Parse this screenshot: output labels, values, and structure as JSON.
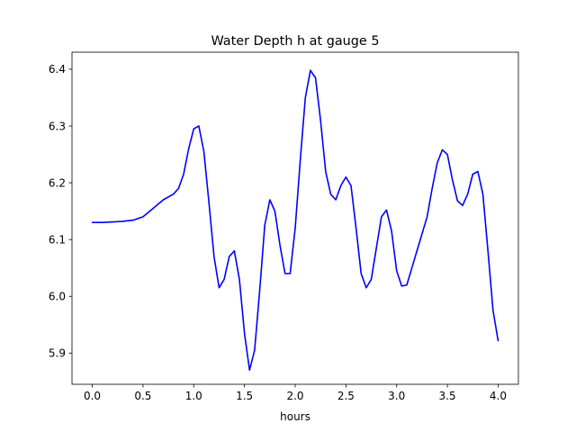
{
  "chart_data": {
    "type": "line",
    "title": "Water Depth h at gauge 5",
    "xlabel": "hours",
    "ylabel": "",
    "xlim": [
      -0.2,
      4.2
    ],
    "ylim": [
      5.845,
      6.43
    ],
    "xticks": [
      0.0,
      0.5,
      1.0,
      1.5,
      2.0,
      2.5,
      3.0,
      3.5,
      4.0
    ],
    "xtick_labels": [
      "0.0",
      "0.5",
      "1.0",
      "1.5",
      "2.0",
      "2.5",
      "3.0",
      "3.5",
      "4.0"
    ],
    "yticks": [
      5.9,
      6.0,
      6.1,
      6.2,
      6.3,
      6.4
    ],
    "ytick_labels": [
      "5.9",
      "6.0",
      "6.1",
      "6.2",
      "6.3",
      "6.4"
    ],
    "grid": false,
    "series": [
      {
        "color": "#0000ff",
        "x": [
          0.0,
          0.1,
          0.2,
          0.3,
          0.4,
          0.5,
          0.6,
          0.7,
          0.8,
          0.85,
          0.9,
          0.95,
          1.0,
          1.05,
          1.1,
          1.15,
          1.2,
          1.25,
          1.3,
          1.35,
          1.4,
          1.45,
          1.5,
          1.55,
          1.6,
          1.65,
          1.7,
          1.75,
          1.8,
          1.85,
          1.9,
          1.95,
          2.0,
          2.05,
          2.1,
          2.15,
          2.2,
          2.25,
          2.3,
          2.35,
          2.4,
          2.45,
          2.5,
          2.55,
          2.6,
          2.65,
          2.7,
          2.75,
          2.8,
          2.85,
          2.9,
          2.95,
          3.0,
          3.05,
          3.1,
          3.15,
          3.2,
          3.25,
          3.3,
          3.35,
          3.4,
          3.45,
          3.5,
          3.55,
          3.6,
          3.65,
          3.7,
          3.75,
          3.8,
          3.85,
          3.9,
          3.95,
          4.0
        ],
        "y": [
          6.13,
          6.13,
          6.131,
          6.132,
          6.134,
          6.14,
          6.155,
          6.17,
          6.18,
          6.19,
          6.215,
          6.26,
          6.295,
          6.3,
          6.255,
          6.165,
          6.07,
          6.015,
          6.03,
          6.07,
          6.08,
          6.03,
          5.935,
          5.87,
          5.905,
          6.01,
          6.125,
          6.17,
          6.15,
          6.09,
          6.04,
          6.04,
          6.12,
          6.24,
          6.35,
          6.398,
          6.385,
          6.31,
          6.22,
          6.18,
          6.17,
          6.195,
          6.21,
          6.195,
          6.12,
          6.04,
          6.015,
          6.03,
          6.085,
          6.14,
          6.152,
          6.115,
          6.045,
          6.018,
          6.02,
          6.05,
          6.08,
          6.11,
          6.14,
          6.19,
          6.235,
          6.258,
          6.25,
          6.205,
          6.168,
          6.16,
          6.18,
          6.215,
          6.22,
          6.18,
          6.08,
          5.975,
          5.922
        ]
      }
    ]
  }
}
